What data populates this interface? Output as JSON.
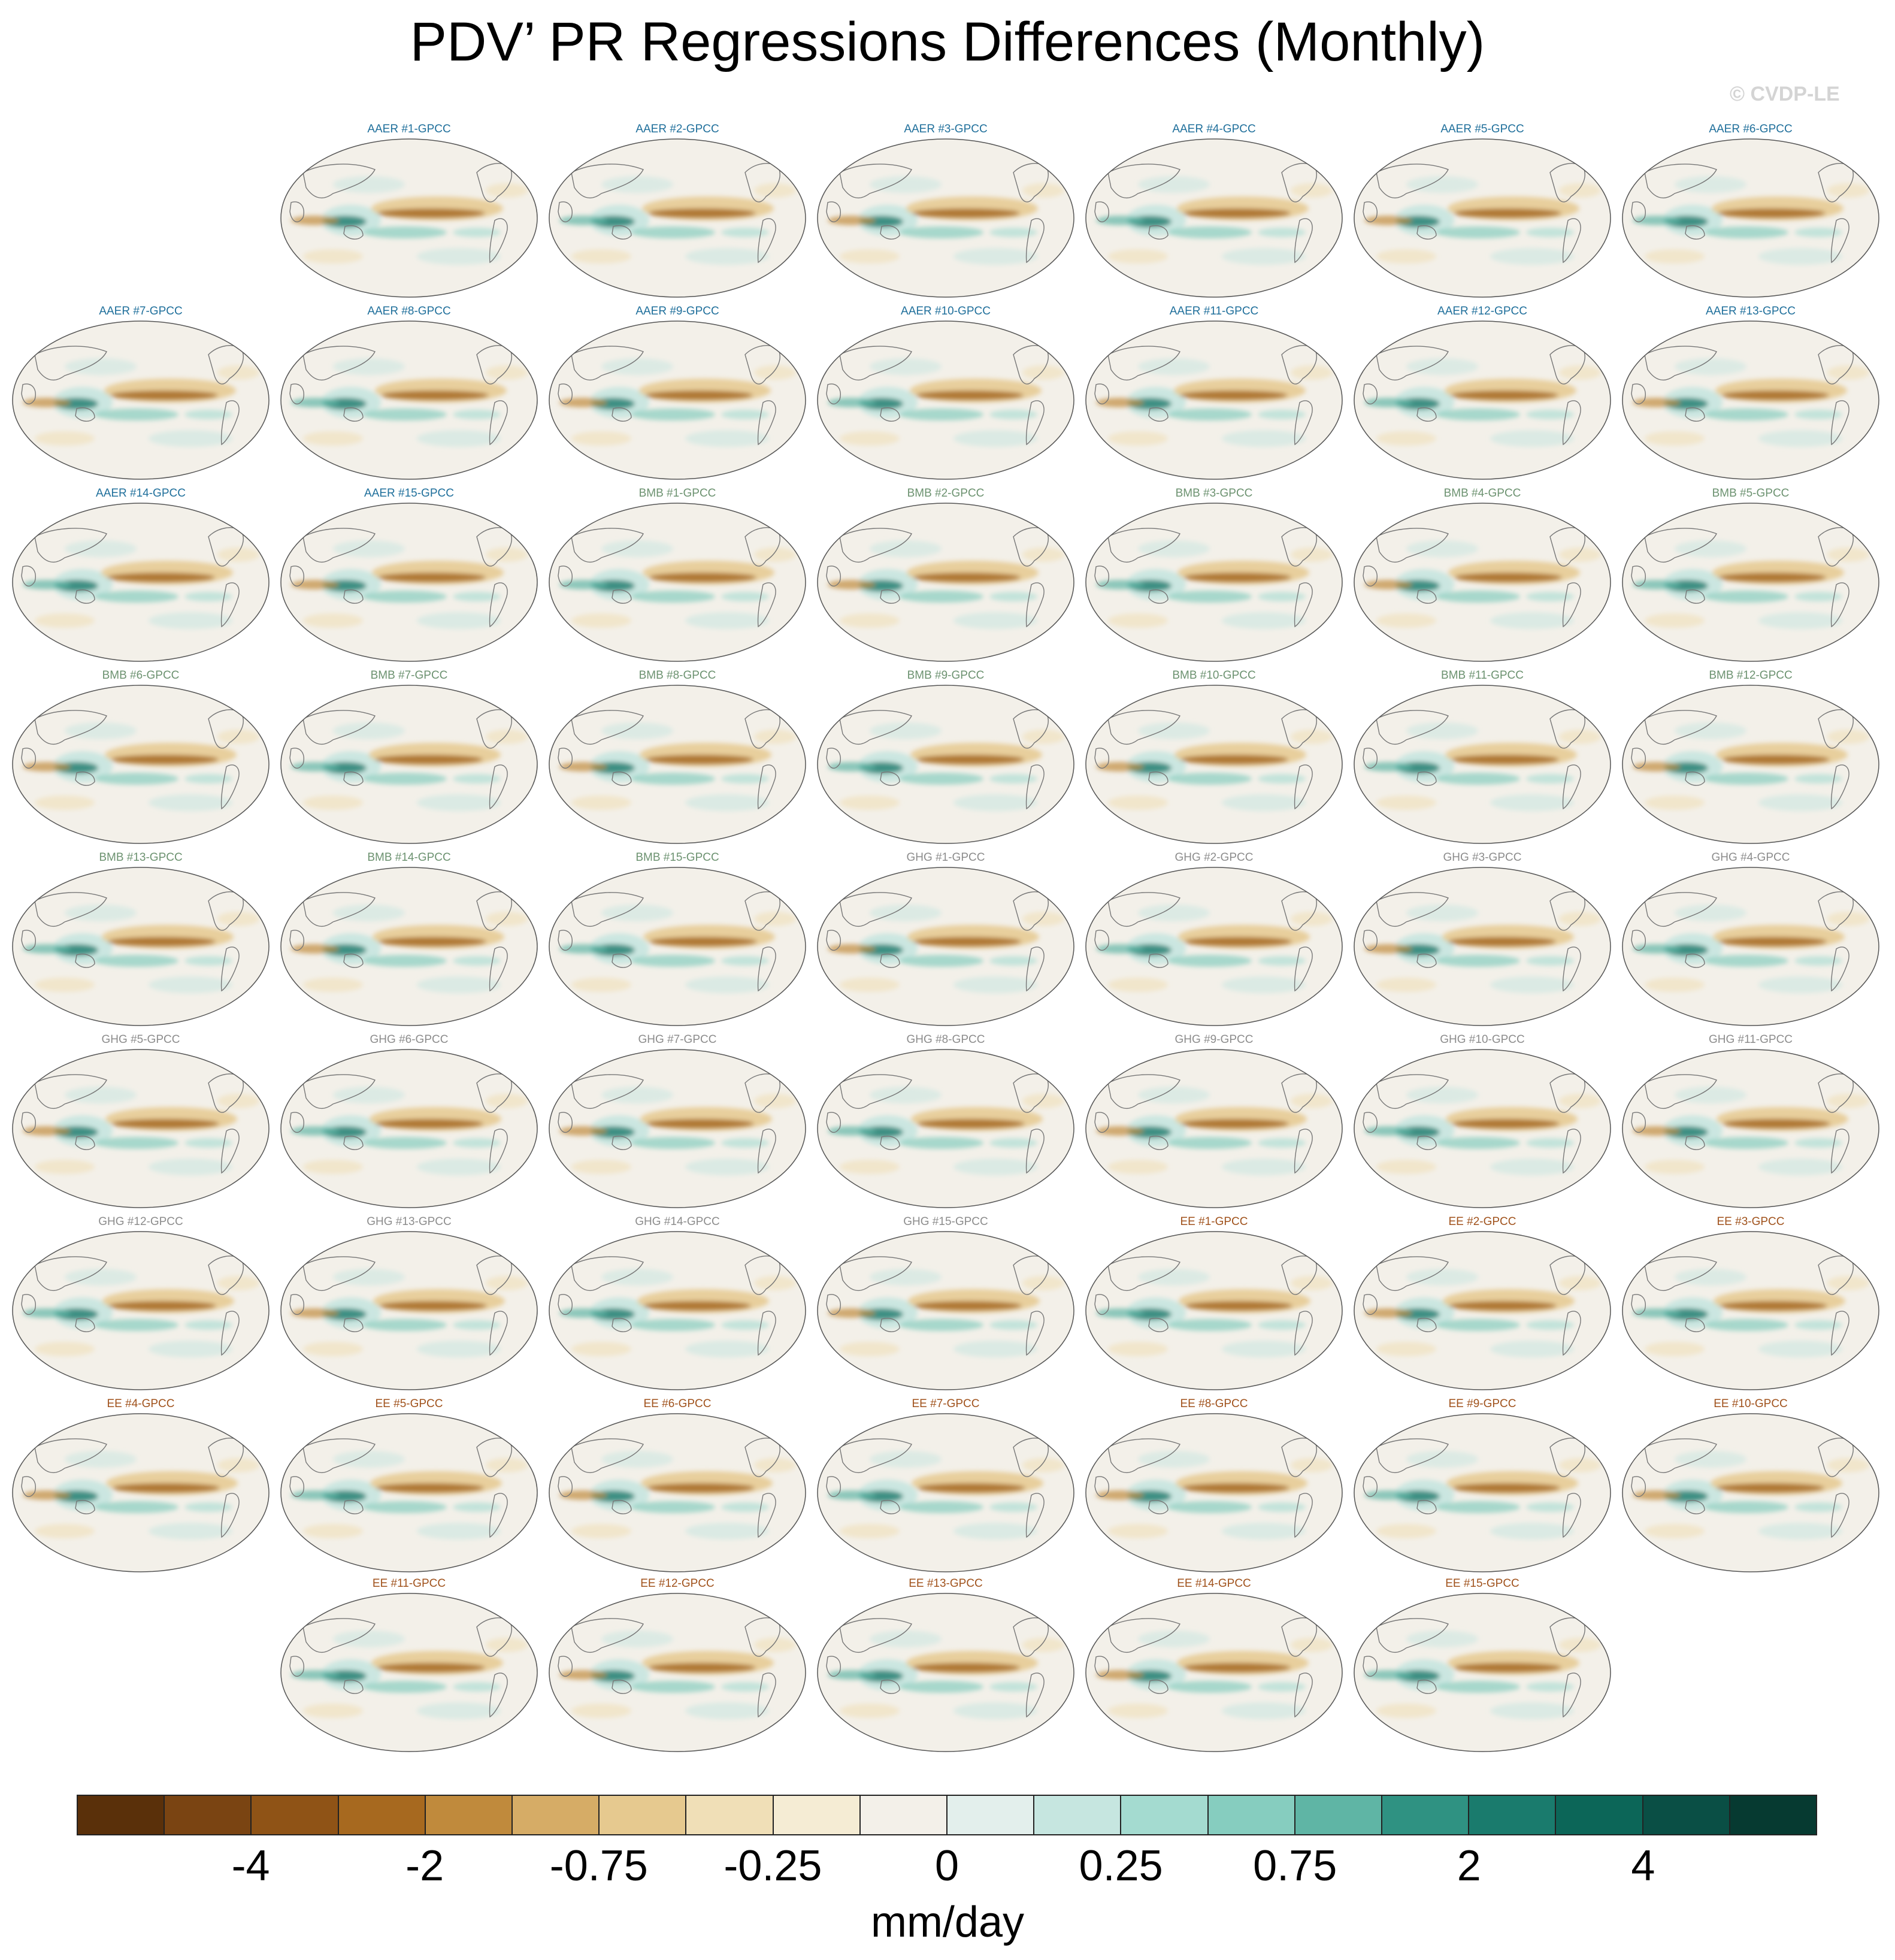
{
  "title": "PDV’ PR Regressions Differences (Monthly)",
  "watermark": "© CVDP-LE",
  "panel_rows": [
    [
      "",
      "AAER #1-GPCC",
      "AAER #2-GPCC",
      "AAER #3-GPCC",
      "AAER #4-GPCC",
      "AAER #5-GPCC",
      "AAER #6-GPCC"
    ],
    [
      "AAER #7-GPCC",
      "AAER #8-GPCC",
      "AAER #9-GPCC",
      "AAER #10-GPCC",
      "AAER #11-GPCC",
      "AAER #12-GPCC",
      "AAER #13-GPCC"
    ],
    [
      "AAER #14-GPCC",
      "AAER #15-GPCC",
      "BMB #1-GPCC",
      "BMB #2-GPCC",
      "BMB #3-GPCC",
      "BMB #4-GPCC",
      "BMB #5-GPCC"
    ],
    [
      "BMB #6-GPCC",
      "BMB #7-GPCC",
      "BMB #8-GPCC",
      "BMB #9-GPCC",
      "BMB #10-GPCC",
      "BMB #11-GPCC",
      "BMB #12-GPCC"
    ],
    [
      "BMB #13-GPCC",
      "BMB #14-GPCC",
      "BMB #15-GPCC",
      "GHG #1-GPCC",
      "GHG #2-GPCC",
      "GHG #3-GPCC",
      "GHG #4-GPCC"
    ],
    [
      "GHG #5-GPCC",
      "GHG #6-GPCC",
      "GHG #7-GPCC",
      "GHG #8-GPCC",
      "GHG #9-GPCC",
      "GHG #10-GPCC",
      "GHG #11-GPCC"
    ],
    [
      "GHG #12-GPCC",
      "GHG #13-GPCC",
      "GHG #14-GPCC",
      "GHG #15-GPCC",
      "EE #1-GPCC",
      "EE #2-GPCC",
      "EE #3-GPCC"
    ],
    [
      "EE #4-GPCC",
      "EE #5-GPCC",
      "EE #6-GPCC",
      "EE #7-GPCC",
      "EE #8-GPCC",
      "EE #9-GPCC",
      "EE #10-GPCC"
    ],
    [
      "",
      "EE #11-GPCC",
      "EE #12-GPCC",
      "EE #13-GPCC",
      "EE #14-GPCC",
      "EE #15-GPCC",
      ""
    ]
  ],
  "label_colors": {
    "AAER": "#1f6f9b",
    "BMB": "#6c9270",
    "GHG": "#8c8c8c",
    "EE": "#a0521c"
  },
  "colorbar": {
    "colors": [
      "#5a300a",
      "#7a4412",
      "#8f5316",
      "#a7691f",
      "#c08a3c",
      "#d6ac66",
      "#e6c98f",
      "#f0dfb7",
      "#f5ecd4",
      "#f3f0e9",
      "#e3efec",
      "#c6e6e0",
      "#a4dbd0",
      "#86cdbf",
      "#5fb5a5",
      "#2f9282",
      "#1a7b6d",
      "#0c6658",
      "#0a4f45",
      "#063a31"
    ],
    "tick_labels": [
      "-4",
      "-2",
      "-0.75",
      "-0.25",
      "0",
      "0.25",
      "0.75",
      "2",
      "4"
    ],
    "units": "mm/day"
  }
}
